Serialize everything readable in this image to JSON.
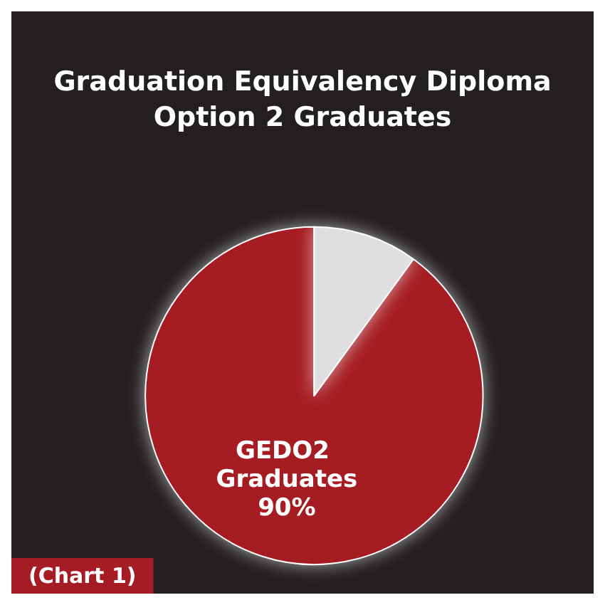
{
  "chart_data": {
    "type": "pie",
    "title": "Graduation Equivalency Diploma\nOption 2 Graduates",
    "categories": [
      "GEDO2 Graduates",
      null
    ],
    "values": [
      90,
      10
    ],
    "colors": [
      "#a51c24",
      "#dfdfe1"
    ],
    "value_labels": [
      "90%",
      null
    ],
    "annotations": [
      "(Chart 1)"
    ]
  }
}
